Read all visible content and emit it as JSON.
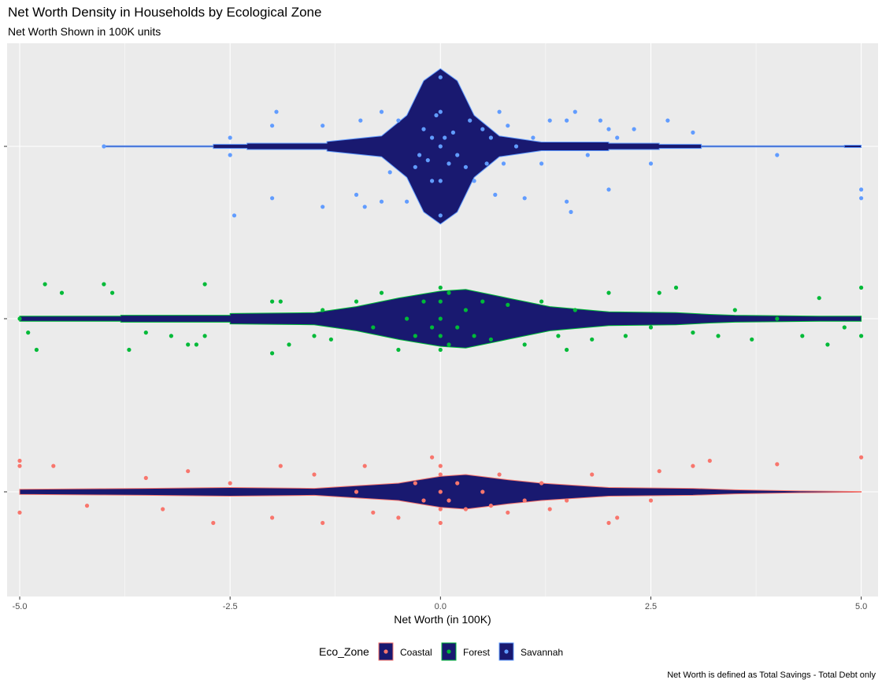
{
  "chart_data": {
    "type": "violin",
    "title": "Net Worth Density in Households by Ecological Zone",
    "subtitle": "Net Worth Shown in 100K units",
    "xlabel": "Net Worth (in 100K)",
    "ylabel": "",
    "caption": "Net Worth is defined as Total Savings - Total Debt only",
    "xlim": [
      -5.15,
      5.2
    ],
    "x_ticks": [
      -5.0,
      -2.5,
      0.0,
      2.5,
      5.0
    ],
    "x_tick_labels": [
      "-5.0",
      "-2.5",
      "0.0",
      "2.5",
      "5.0"
    ],
    "grid": true,
    "legend": {
      "title": "Eco_Zone",
      "position": "bottom",
      "entries": [
        "Coastal",
        "Forest",
        "Savannah"
      ]
    },
    "fill_color": "#191970",
    "series": [
      {
        "name": "Savannah",
        "color": "#619CFF",
        "row": 3,
        "density_profile": [
          [
            -4.0,
            0.003
          ],
          [
            -2.7,
            0.003
          ],
          [
            -2.7,
            0.012
          ],
          [
            -2.3,
            0.012
          ],
          [
            -2.3,
            0.018
          ],
          [
            -1.35,
            0.018
          ],
          [
            -1.35,
            0.028
          ],
          [
            -1.3,
            0.03
          ],
          [
            -0.7,
            0.06
          ],
          [
            -0.4,
            0.18
          ],
          [
            -0.2,
            0.38
          ],
          [
            0.0,
            0.45
          ],
          [
            0.2,
            0.38
          ],
          [
            0.4,
            0.18
          ],
          [
            0.7,
            0.06
          ],
          [
            1.2,
            0.025
          ],
          [
            2.0,
            0.025
          ],
          [
            2.0,
            0.018
          ],
          [
            2.6,
            0.018
          ],
          [
            2.6,
            0.012
          ],
          [
            3.1,
            0.012
          ],
          [
            3.1,
            0.003
          ],
          [
            4.8,
            0.003
          ],
          [
            4.8,
            0.007
          ],
          [
            5.0,
            0.007
          ]
        ],
        "points": [
          [
            -4.0,
            0.0
          ],
          [
            -2.5,
            0.05
          ],
          [
            -2.5,
            -0.05
          ],
          [
            -2.45,
            0.4
          ],
          [
            -2.0,
            0.3
          ],
          [
            -2.0,
            -0.12
          ],
          [
            -1.95,
            -0.2
          ],
          [
            -1.4,
            0.35
          ],
          [
            -1.4,
            -0.12
          ],
          [
            -1.0,
            0.28
          ],
          [
            -0.9,
            0.35
          ],
          [
            -0.95,
            -0.15
          ],
          [
            -0.7,
            0.32
          ],
          [
            -0.7,
            -0.2
          ],
          [
            -0.6,
            0.15
          ],
          [
            -0.5,
            -0.15
          ],
          [
            -0.4,
            0.32
          ],
          [
            -0.3,
            0.12
          ],
          [
            -0.25,
            0.05
          ],
          [
            -0.2,
            -0.1
          ],
          [
            -0.15,
            0.08
          ],
          [
            -0.1,
            -0.05
          ],
          [
            -0.1,
            0.2
          ],
          [
            -0.05,
            -0.18
          ],
          [
            0.0,
            0.4
          ],
          [
            0.0,
            0.2
          ],
          [
            0.0,
            0.0
          ],
          [
            0.0,
            -0.2
          ],
          [
            0.0,
            -0.4
          ],
          [
            0.05,
            -0.05
          ],
          [
            0.1,
            0.1
          ],
          [
            0.15,
            -0.08
          ],
          [
            0.2,
            0.05
          ],
          [
            0.3,
            0.12
          ],
          [
            0.35,
            -0.15
          ],
          [
            0.4,
            0.2
          ],
          [
            0.5,
            -0.1
          ],
          [
            0.55,
            0.1
          ],
          [
            0.6,
            -0.05
          ],
          [
            0.65,
            0.28
          ],
          [
            0.7,
            -0.2
          ],
          [
            0.75,
            0.1
          ],
          [
            0.8,
            -0.12
          ],
          [
            0.9,
            0.0
          ],
          [
            1.0,
            0.3
          ],
          [
            1.1,
            -0.05
          ],
          [
            1.2,
            0.1
          ],
          [
            1.3,
            -0.15
          ],
          [
            1.5,
            0.32
          ],
          [
            1.55,
            0.38
          ],
          [
            1.5,
            -0.15
          ],
          [
            1.6,
            -0.2
          ],
          [
            1.75,
            0.05
          ],
          [
            1.9,
            -0.15
          ],
          [
            2.0,
            0.25
          ],
          [
            2.0,
            -0.1
          ],
          [
            2.1,
            -0.05
          ],
          [
            2.3,
            -0.1
          ],
          [
            2.5,
            0.1
          ],
          [
            2.7,
            -0.15
          ],
          [
            3.0,
            -0.08
          ],
          [
            4.0,
            0.05
          ],
          [
            5.0,
            0.3
          ],
          [
            5.0,
            0.25
          ]
        ]
      },
      {
        "name": "Forest",
        "color": "#00BA38",
        "row": 2,
        "density_profile": [
          [
            -5.0,
            0.015
          ],
          [
            -3.8,
            0.015
          ],
          [
            -3.8,
            0.02
          ],
          [
            -2.5,
            0.02
          ],
          [
            -2.5,
            0.03
          ],
          [
            -1.5,
            0.035
          ],
          [
            -1.0,
            0.07
          ],
          [
            -0.5,
            0.12
          ],
          [
            0.0,
            0.16
          ],
          [
            0.3,
            0.17
          ],
          [
            0.8,
            0.12
          ],
          [
            1.3,
            0.07
          ],
          [
            2.0,
            0.04
          ],
          [
            2.8,
            0.035
          ],
          [
            3.2,
            0.025
          ],
          [
            3.5,
            0.02
          ],
          [
            4.5,
            0.015
          ],
          [
            5.0,
            0.015
          ]
        ],
        "points": [
          [
            -5.0,
            0.0
          ],
          [
            -4.9,
            0.08
          ],
          [
            -4.8,
            0.18
          ],
          [
            -4.7,
            -0.2
          ],
          [
            -4.5,
            -0.15
          ],
          [
            -4.0,
            -0.2
          ],
          [
            -3.9,
            -0.15
          ],
          [
            -3.7,
            0.18
          ],
          [
            -3.5,
            0.08
          ],
          [
            -3.2,
            0.1
          ],
          [
            -3.0,
            0.15
          ],
          [
            -2.9,
            0.15
          ],
          [
            -2.8,
            -0.2
          ],
          [
            -2.8,
            0.1
          ],
          [
            -2.0,
            0.2
          ],
          [
            -2.0,
            -0.1
          ],
          [
            -1.9,
            -0.1
          ],
          [
            -1.8,
            0.15
          ],
          [
            -1.5,
            0.1
          ],
          [
            -1.4,
            -0.05
          ],
          [
            -1.3,
            0.12
          ],
          [
            -1.0,
            -0.1
          ],
          [
            -0.8,
            0.05
          ],
          [
            -0.7,
            -0.15
          ],
          [
            -0.5,
            0.18
          ],
          [
            -0.4,
            0.0
          ],
          [
            -0.3,
            0.1
          ],
          [
            -0.2,
            -0.1
          ],
          [
            -0.1,
            0.05
          ],
          [
            0.0,
            0.18
          ],
          [
            0.0,
            0.1
          ],
          [
            0.0,
            0.0
          ],
          [
            0.0,
            -0.1
          ],
          [
            0.0,
            -0.18
          ],
          [
            0.1,
            0.15
          ],
          [
            0.1,
            -0.15
          ],
          [
            0.2,
            0.05
          ],
          [
            0.3,
            -0.05
          ],
          [
            0.4,
            0.1
          ],
          [
            0.5,
            -0.1
          ],
          [
            0.6,
            0.12
          ],
          [
            0.8,
            -0.08
          ],
          [
            1.0,
            0.15
          ],
          [
            1.2,
            -0.1
          ],
          [
            1.4,
            0.1
          ],
          [
            1.5,
            0.18
          ],
          [
            1.6,
            -0.05
          ],
          [
            1.8,
            0.12
          ],
          [
            2.0,
            -0.15
          ],
          [
            2.2,
            0.1
          ],
          [
            2.5,
            0.05
          ],
          [
            2.6,
            -0.15
          ],
          [
            2.8,
            -0.18
          ],
          [
            3.0,
            0.08
          ],
          [
            3.3,
            0.1
          ],
          [
            3.5,
            -0.05
          ],
          [
            3.7,
            0.12
          ],
          [
            4.0,
            0.0
          ],
          [
            4.3,
            0.1
          ],
          [
            4.5,
            -0.12
          ],
          [
            4.6,
            0.15
          ],
          [
            4.8,
            0.05
          ],
          [
            5.0,
            0.1
          ],
          [
            5.0,
            -0.18
          ]
        ]
      },
      {
        "name": "Coastal",
        "color": "#F8766D",
        "row": 1,
        "density_profile": [
          [
            -5.0,
            0.015
          ],
          [
            -4.0,
            0.018
          ],
          [
            -3.5,
            0.02
          ],
          [
            -2.5,
            0.025
          ],
          [
            -1.5,
            0.02
          ],
          [
            -1.0,
            0.035
          ],
          [
            -0.5,
            0.05
          ],
          [
            0.0,
            0.09
          ],
          [
            0.3,
            0.1
          ],
          [
            0.8,
            0.07
          ],
          [
            1.2,
            0.05
          ],
          [
            2.0,
            0.025
          ],
          [
            3.0,
            0.02
          ],
          [
            3.5,
            0.012
          ],
          [
            4.3,
            0.005
          ],
          [
            5.0,
            0.002
          ]
        ],
        "points": [
          [
            -5.0,
            0.12
          ],
          [
            -5.0,
            -0.15
          ],
          [
            -5.0,
            -0.18
          ],
          [
            -4.6,
            -0.15
          ],
          [
            -4.2,
            0.08
          ],
          [
            -3.5,
            -0.08
          ],
          [
            -3.3,
            0.1
          ],
          [
            -3.0,
            -0.12
          ],
          [
            -2.7,
            0.18
          ],
          [
            -2.5,
            -0.05
          ],
          [
            -2.0,
            0.15
          ],
          [
            -1.9,
            -0.15
          ],
          [
            -1.5,
            -0.1
          ],
          [
            -1.4,
            0.18
          ],
          [
            -1.0,
            0.0
          ],
          [
            -0.9,
            -0.15
          ],
          [
            -0.8,
            0.12
          ],
          [
            -0.5,
            0.15
          ],
          [
            -0.3,
            -0.05
          ],
          [
            -0.2,
            0.05
          ],
          [
            -0.1,
            -0.2
          ],
          [
            0.0,
            0.18
          ],
          [
            0.0,
            0.1
          ],
          [
            0.0,
            0.0
          ],
          [
            0.0,
            -0.1
          ],
          [
            0.0,
            -0.15
          ],
          [
            0.1,
            0.05
          ],
          [
            0.2,
            -0.05
          ],
          [
            0.3,
            0.1
          ],
          [
            0.5,
            0.0
          ],
          [
            0.6,
            0.08
          ],
          [
            0.7,
            -0.1
          ],
          [
            0.8,
            0.12
          ],
          [
            1.0,
            0.05
          ],
          [
            1.2,
            -0.05
          ],
          [
            1.3,
            0.1
          ],
          [
            1.5,
            0.05
          ],
          [
            1.8,
            -0.1
          ],
          [
            2.0,
            0.18
          ],
          [
            2.1,
            0.15
          ],
          [
            2.5,
            0.05
          ],
          [
            2.6,
            -0.12
          ],
          [
            3.0,
            -0.15
          ],
          [
            3.2,
            -0.18
          ],
          [
            4.0,
            -0.16
          ],
          [
            5.0,
            -0.2
          ]
        ]
      }
    ]
  }
}
